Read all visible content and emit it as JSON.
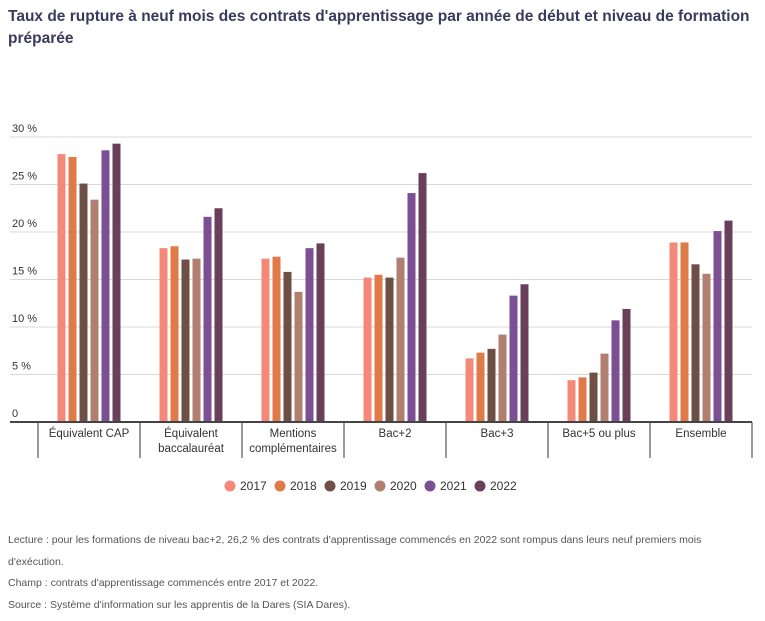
{
  "chart_data": {
    "type": "bar",
    "title": "Taux de rupture à neuf mois des contrats d'apprentissage par année de début et niveau de formation préparée",
    "categories": [
      [
        "Équivalent CAP"
      ],
      [
        "Équivalent",
        "baccalauréat"
      ],
      [
        "Mentions",
        "complémentaires"
      ],
      [
        "Bac+2"
      ],
      [
        "Bac+3"
      ],
      [
        "Bac+5 ou plus"
      ],
      [
        "Ensemble"
      ]
    ],
    "ylim": [
      0,
      30
    ],
    "yticks": [
      0,
      5,
      10,
      15,
      20,
      25,
      30
    ],
    "ytick_labels": [
      "0",
      "5 %",
      "10 %",
      "15 %",
      "20 %",
      "25 %",
      "30 %"
    ],
    "grid": true,
    "legend_position": "bottom",
    "series": [
      {
        "name": "2017",
        "color": "#f4897a",
        "values": [
          28.2,
          18.3,
          17.2,
          15.2,
          6.7,
          4.4,
          18.9
        ]
      },
      {
        "name": "2018",
        "color": "#e07b48",
        "values": [
          27.9,
          18.5,
          17.4,
          15.5,
          7.3,
          4.7,
          18.9
        ]
      },
      {
        "name": "2019",
        "color": "#6e4f45",
        "values": [
          25.1,
          17.1,
          15.8,
          15.2,
          7.7,
          5.2,
          16.6
        ]
      },
      {
        "name": "2020",
        "color": "#b07f70",
        "values": [
          23.4,
          17.2,
          13.7,
          17.3,
          9.2,
          7.2,
          15.6
        ]
      },
      {
        "name": "2021",
        "color": "#7c4e94",
        "values": [
          28.6,
          21.6,
          18.3,
          24.1,
          13.3,
          10.7,
          20.1
        ]
      },
      {
        "name": "2022",
        "color": "#6a3f5a",
        "values": [
          29.3,
          22.5,
          18.8,
          26.2,
          14.5,
          11.9,
          21.2
        ]
      }
    ]
  },
  "notes": {
    "lecture": "Lecture : pour les formations de niveau bac+2, 26,2 % des contrats d'apprentissage commencés en 2022 sont rompus dans leurs neuf premiers mois d'exécution.",
    "champ": "Champ : contrats d'apprentissage commencés entre 2017 et 2022.",
    "source": "Source : Système d'information sur les apprentis de la Dares (SIA Dares)."
  }
}
